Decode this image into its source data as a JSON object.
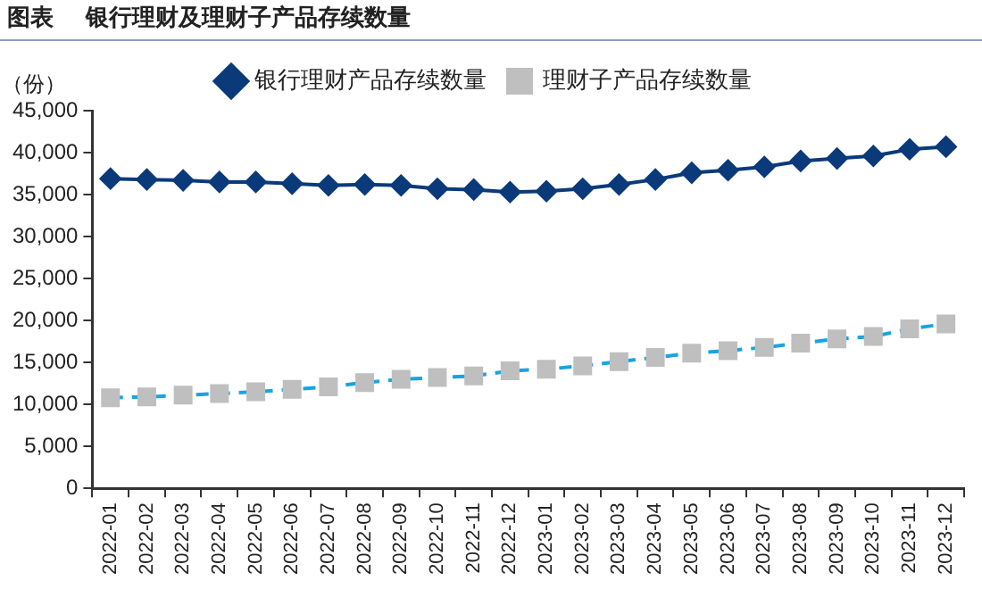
{
  "chart_data": {
    "type": "line",
    "title": "图表    银行理财及理财子产品存续数量",
    "ylabel": "（份）",
    "categories": [
      "2022-01",
      "2022-02",
      "2022-03",
      "2022-04",
      "2022-05",
      "2022-06",
      "2022-07",
      "2022-08",
      "2022-09",
      "2022-10",
      "2022-11",
      "2022-12",
      "2023-01",
      "2023-02",
      "2023-03",
      "2023-04",
      "2023-05",
      "2023-06",
      "2023-07",
      "2023-08",
      "2023-09",
      "2023-10",
      "2023-11",
      "2023-12"
    ],
    "series": [
      {
        "name": "银行理财产品存续数量",
        "color": "#0a3a7a",
        "marker": "diamond",
        "line_style": "solid",
        "values": [
          36900,
          36800,
          36700,
          36500,
          36500,
          36300,
          36100,
          36200,
          36100,
          35700,
          35600,
          35300,
          35400,
          35700,
          36200,
          36800,
          37600,
          37900,
          38300,
          39000,
          39300,
          39600,
          40400,
          40700
        ]
      },
      {
        "name": "理财子产品存续数量",
        "color": "#1aa3e0",
        "colors": [
          "#bfbfbf",
          "#bfbfbf",
          "#bfbfbf",
          "#bfbfbf",
          "#bfbfbf",
          "#bfbfbf",
          "#bfbfbf",
          "#bfbfbf",
          "#bfbfbf",
          "#bfbfbf",
          "#bfbfbf",
          "#bfbfbf",
          "#bfbfbf",
          "#bfbfbf",
          "#bfbfbf",
          "#bfbfbf",
          "#bfbfbf",
          "#bfbfbf",
          "#bfbfbf",
          "#bfbfbf",
          "#bfbfbf",
          "#bfbfbf",
          "#bfbfbf",
          "#bfbfbf"
        ],
        "marker": "square",
        "line_style": "dashed",
        "values": [
          10800,
          10900,
          11100,
          11300,
          11500,
          11800,
          12100,
          12600,
          13000,
          13200,
          13400,
          14000,
          14200,
          14600,
          15100,
          15600,
          16100,
          16400,
          16800,
          17300,
          17800,
          18100,
          19000,
          19600
        ]
      }
    ],
    "ylim": [
      0,
      45000
    ],
    "yticks": [
      {
        "value": 0,
        "label": "0"
      },
      {
        "value": 5000,
        "label": "5,000"
      },
      {
        "value": 10000,
        "label": "10,000"
      },
      {
        "value": 15000,
        "label": "15,000"
      },
      {
        "value": 20000,
        "label": "20,000"
      },
      {
        "value": 25000,
        "label": "25,000"
      },
      {
        "value": 30000,
        "label": "30,000"
      },
      {
        "value": 35000,
        "label": "35,000"
      },
      {
        "value": 40000,
        "label": "40,000"
      },
      {
        "value": 45000,
        "label": "45,000"
      }
    ],
    "grid": false,
    "legend": "top"
  }
}
